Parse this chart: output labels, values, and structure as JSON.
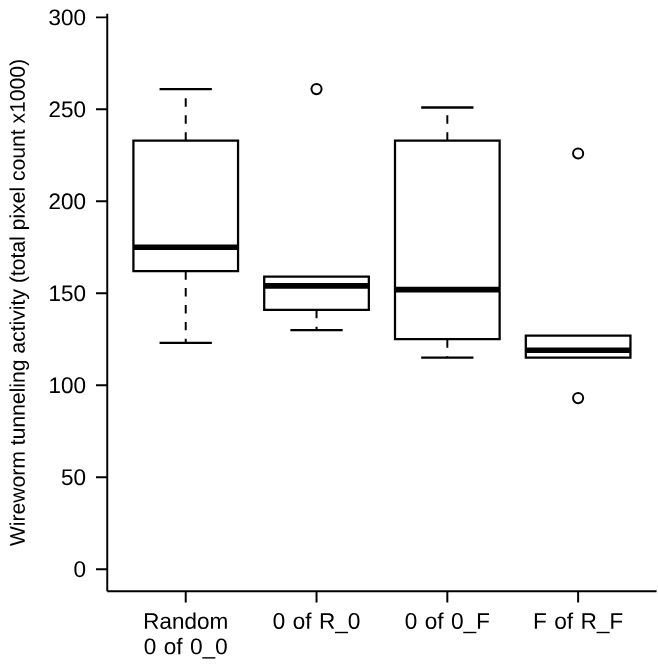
{
  "chart_data": {
    "type": "box",
    "ylabel": "Wireworm tunneling activity (total pixel count x1000)",
    "categories": [
      "Random 0 of 0_0",
      "0 of R_0",
      "0 of 0_F",
      "F of R_F"
    ],
    "boxes": [
      {
        "low": 123,
        "q1": 162,
        "median": 175,
        "q3": 233,
        "high": 261
      },
      {
        "low": 130,
        "q1": 141,
        "median": 154,
        "q3": 159,
        "high": 159,
        "outliers": [
          261
        ]
      },
      {
        "low": 115,
        "q1": 125,
        "median": 152,
        "q3": 233,
        "high": 251
      },
      {
        "low": 115,
        "q1": 115,
        "median": 119,
        "q3": 127,
        "high": 127,
        "outliers": [
          226,
          93
        ]
      }
    ],
    "color": "#000000",
    "ylim": [
      -12,
      302
    ],
    "yticks": [
      0,
      50,
      100,
      150,
      200,
      250,
      300
    ],
    "marker": "circle"
  }
}
